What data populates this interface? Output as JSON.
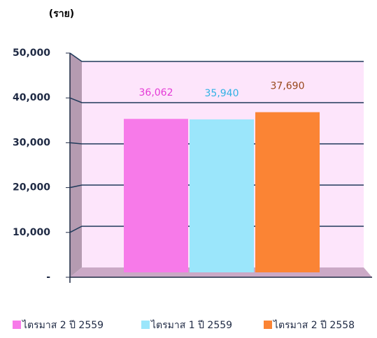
{
  "chart_data": {
    "type": "bar",
    "ylabel": "(ราย)",
    "categories": [
      null
    ],
    "series": [
      {
        "name": "ไตรมาส 2 ปี 2559",
        "color": "#f77ae9",
        "label_color": "#e43ad6",
        "values": [
          36062
        ],
        "value_labels": [
          "36,062"
        ]
      },
      {
        "name": "ไตรมาส 1 ปี 2559",
        "color": "#9be6fb",
        "label_color": "#31b2e4",
        "values": [
          35940
        ],
        "value_labels": [
          "35,940"
        ]
      },
      {
        "name": "ไตรมาส 2 ปี 2558",
        "color": "#fb8434",
        "label_color": "#98481c",
        "values": [
          37690
        ],
        "value_labels": [
          "37,690"
        ]
      }
    ],
    "ylim": [
      0,
      50000
    ],
    "yticks": [
      {
        "value": 0,
        "label": "-"
      },
      {
        "value": 10000,
        "label": "10,000"
      },
      {
        "value": 20000,
        "label": "20,000"
      },
      {
        "value": 30000,
        "label": "30,000"
      },
      {
        "value": 40000,
        "label": "40,000"
      },
      {
        "value": 50000,
        "label": "50,000"
      }
    ],
    "grid": true
  }
}
